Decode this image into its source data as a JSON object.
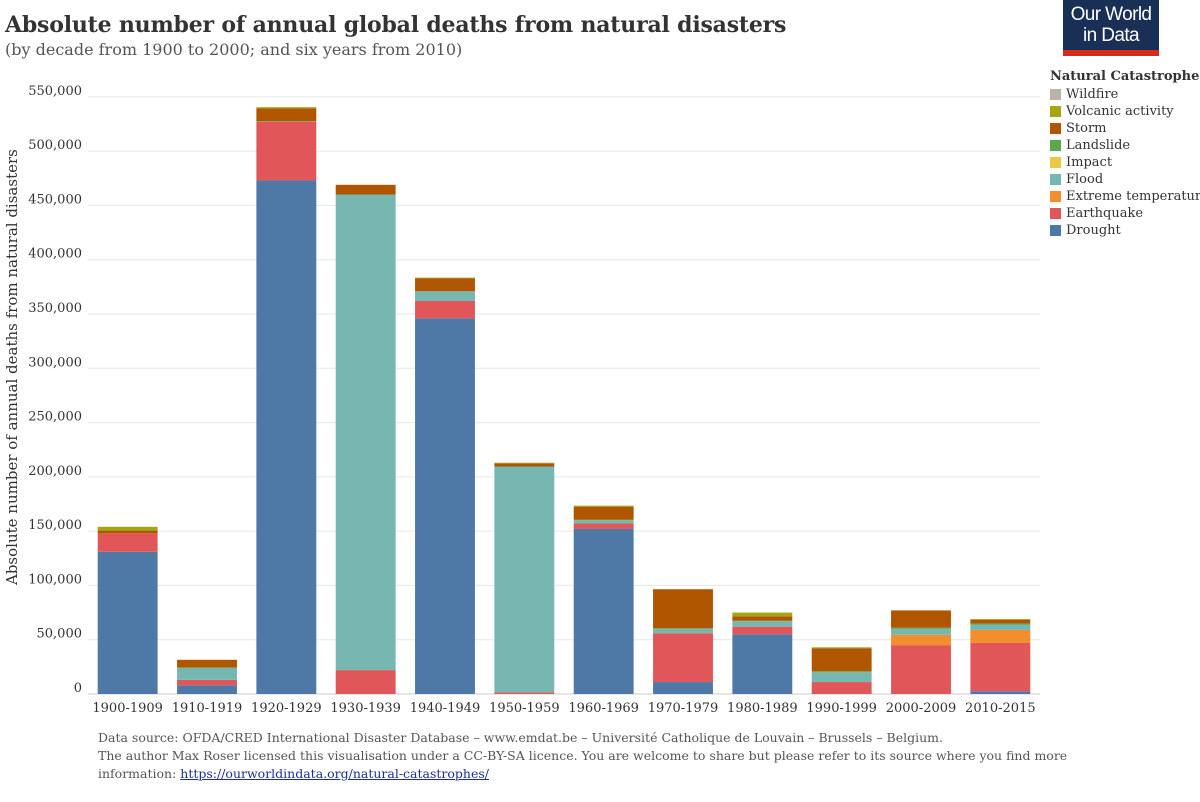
{
  "header": {
    "title": "Absolute number of annual global deaths from natural disasters",
    "subtitle": "(by decade from 1900 to 2000; and six years from 2010)"
  },
  "logo": {
    "line1": "Our World",
    "line2": "in Data"
  },
  "legend": {
    "title": "Natural Catastrophe",
    "items": [
      {
        "label": "Wildfire",
        "color": "#b9b2ab"
      },
      {
        "label": "Volcanic activity",
        "color": "#a4a614"
      },
      {
        "label": "Storm",
        "color": "#b05500"
      },
      {
        "label": "Landslide",
        "color": "#5ba84f"
      },
      {
        "label": "Impact",
        "color": "#ecc844"
      },
      {
        "label": "Flood",
        "color": "#76b7b2"
      },
      {
        "label": "Extreme temperature",
        "color": "#f28e2b"
      },
      {
        "label": "Earthquake",
        "color": "#e15759"
      },
      {
        "label": "Drought",
        "color": "#4e79a7"
      }
    ]
  },
  "chart_data": {
    "type": "bar",
    "stacked": true,
    "title": "Absolute number of annual global deaths from natural disasters",
    "subtitle": "(by decade from 1900 to 2000; and six years from 2010)",
    "xlabel": "",
    "ylabel": "Absolute number of annual deaths from natural disasters",
    "ylim": [
      0,
      560000
    ],
    "yticks": [
      0,
      50000,
      100000,
      150000,
      200000,
      250000,
      300000,
      350000,
      400000,
      450000,
      500000,
      550000
    ],
    "ytick_labels": [
      "0",
      "50,000",
      "100,000",
      "150,000",
      "200,000",
      "250,000",
      "300,000",
      "350,000",
      "400,000",
      "450,000",
      "500,000",
      "550,000"
    ],
    "legend_position": "top-right",
    "grid": true,
    "categories": [
      "1900-1909",
      "1910-1919",
      "1920-1929",
      "1930-1939",
      "1940-1949",
      "1950-1959",
      "1960-1969",
      "1970-1979",
      "1980-1989",
      "1990-1999",
      "2000-2009",
      "2010-2015"
    ],
    "series": [
      {
        "name": "Drought",
        "color": "#4e79a7",
        "values": [
          131000,
          8000,
          473000,
          0,
          346000,
          0,
          152000,
          11000,
          55000,
          0,
          0,
          2500
        ]
      },
      {
        "name": "Earthquake",
        "color": "#e15759",
        "values": [
          17000,
          5000,
          54000,
          22000,
          16000,
          1500,
          5000,
          45000,
          7000,
          11000,
          45000,
          44500
        ]
      },
      {
        "name": "Extreme temperature",
        "color": "#f28e2b",
        "values": [
          0,
          0,
          0,
          0,
          0,
          0,
          0,
          0,
          0,
          0,
          9500,
          12000
        ]
      },
      {
        "name": "Flood",
        "color": "#76b7b2",
        "values": [
          0,
          11000,
          0,
          438000,
          9000,
          208000,
          3000,
          4000,
          5000,
          9000,
          5500,
          5000
        ]
      },
      {
        "name": "Impact",
        "color": "#ecc844",
        "values": [
          0,
          0,
          0,
          0,
          0,
          0,
          0,
          0,
          0,
          0,
          0,
          0
        ]
      },
      {
        "name": "Landslide",
        "color": "#5ba84f",
        "values": [
          0,
          500,
          500,
          0,
          0,
          0,
          500,
          500,
          500,
          1000,
          1000,
          1000
        ]
      },
      {
        "name": "Storm",
        "color": "#b05500",
        "values": [
          2500,
          7000,
          12000,
          9000,
          12000,
          3000,
          12000,
          36000,
          4000,
          21000,
          16000,
          3500
        ]
      },
      {
        "name": "Volcanic activity",
        "color": "#a4a614",
        "values": [
          3500,
          0,
          1000,
          0,
          500,
          500,
          1000,
          0,
          3500,
          1000,
          0,
          500
        ]
      },
      {
        "name": "Wildfire",
        "color": "#b9b2ab",
        "values": [
          0,
          0,
          0,
          0,
          0,
          0,
          0,
          0,
          0,
          0,
          0,
          0
        ]
      }
    ]
  },
  "footer": {
    "line1": "Data source: OFDA/CRED International Disaster Database – www.emdat.be – Université Catholique de Louvain – Brussels – Belgium.",
    "line2": "The author Max Roser licensed this visualisation under a CC-BY-SA licence. You are welcome to share but please refer to its source where you find more",
    "line3_prefix": "information: ",
    "link": "https://ourworldindata.org/natural-catastrophes/"
  }
}
